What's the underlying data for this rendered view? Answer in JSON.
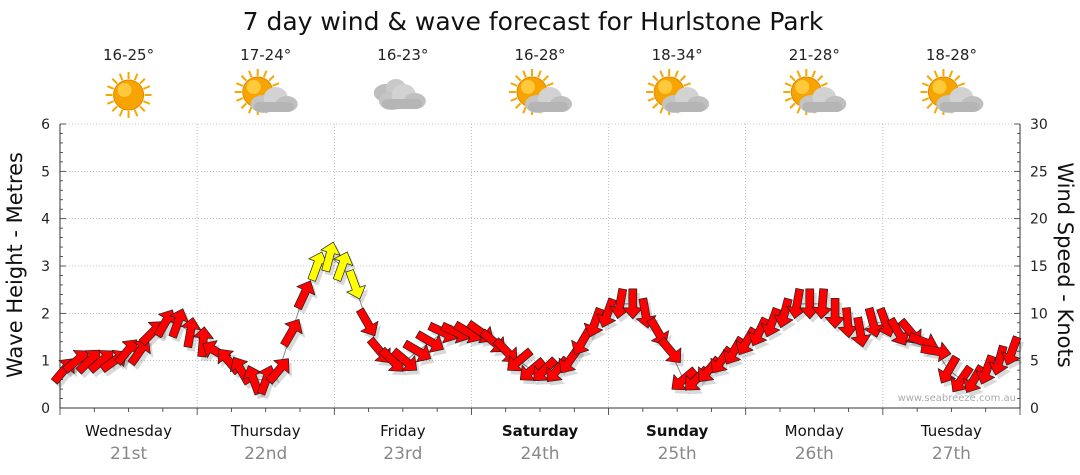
{
  "chart_data": {
    "type": "line",
    "title": "7 day wind & wave forecast for Hurlstone Park",
    "ylabel_left": "Wave Height - Metres",
    "ylabel_right": "Wind Speed - Knots",
    "ylim_left": [
      0,
      6
    ],
    "ylim_right": [
      0,
      30
    ],
    "left_ticks": [
      "0",
      "1",
      "2",
      "3",
      "4",
      "5",
      "6"
    ],
    "right_ticks": [
      "0",
      "5",
      "10",
      "15",
      "20",
      "25",
      "30"
    ],
    "grid": true,
    "days": [
      {
        "name": "Wednesday",
        "date": "21st",
        "temp": "16-25°",
        "icon": "sun-icon",
        "bold": false
      },
      {
        "name": "Thursday",
        "date": "22nd",
        "temp": "17-24°",
        "icon": "sun-cloud-icon",
        "bold": false
      },
      {
        "name": "Friday",
        "date": "23rd",
        "temp": "16-23°",
        "icon": "cloud-icon",
        "bold": false
      },
      {
        "name": "Saturday",
        "date": "24th",
        "temp": "16-28°",
        "icon": "sun-cloud-icon",
        "bold": true
      },
      {
        "name": "Sunday",
        "date": "25th",
        "temp": "18-34°",
        "icon": "sun-cloud-icon",
        "bold": true
      },
      {
        "name": "Monday",
        "date": "26th",
        "temp": "21-28°",
        "icon": "sun-cloud-icon",
        "bold": false
      },
      {
        "name": "Tuesday",
        "date": "27th",
        "temp": "18-28°",
        "icon": "sun-cloud-icon",
        "bold": false
      }
    ],
    "series": [
      {
        "values_knots": [
          4,
          5,
          5,
          5,
          5,
          6,
          6,
          8,
          9,
          9,
          8,
          7,
          6,
          5,
          4,
          3,
          3,
          4,
          8,
          12,
          15,
          16,
          15,
          13,
          9,
          6,
          5,
          5,
          6,
          7,
          8,
          8,
          8,
          8,
          7,
          6,
          5,
          4,
          4,
          4,
          5,
          7,
          9,
          10,
          11,
          11,
          10,
          8,
          6,
          3,
          3,
          4,
          5,
          6,
          7,
          8,
          9,
          10,
          11,
          11,
          11,
          10,
          9,
          8,
          9,
          9,
          8,
          8,
          7,
          6,
          4,
          3,
          3,
          4,
          5,
          6
        ],
        "directions_deg": [
          40,
          50,
          45,
          50,
          55,
          40,
          35,
          45,
          30,
          20,
          10,
          5,
          300,
          320,
          330,
          340,
          20,
          40,
          30,
          25,
          20,
          15,
          20,
          160,
          150,
          140,
          135,
          130,
          120,
          120,
          115,
          115,
          120,
          125,
          130,
          135,
          230,
          230,
          225,
          220,
          215,
          210,
          200,
          200,
          190,
          180,
          170,
          150,
          140,
          230,
          225,
          220,
          215,
          210,
          210,
          205,
          200,
          195,
          190,
          180,
          185,
          180,
          175,
          170,
          165,
          160,
          150,
          140,
          110,
          100,
          210,
          215,
          210,
          200,
          195,
          200
        ]
      }
    ],
    "wind_color_scale": [
      {
        "max_knots": 12,
        "color": "#ff0000"
      },
      {
        "max_knots": 30,
        "color": "#ffff00"
      }
    ]
  },
  "watermark": "www.seabreeze.com.au"
}
